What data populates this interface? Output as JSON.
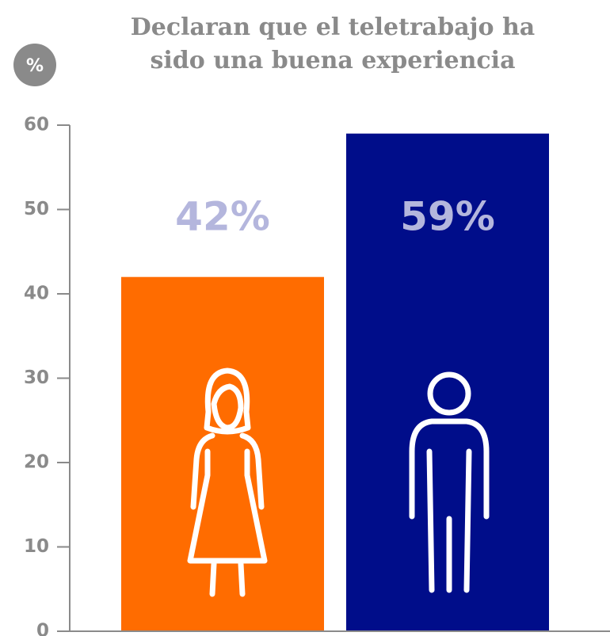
{
  "chart_data": {
    "type": "bar",
    "title_lines": [
      "Declaran que el teletrabajo ha",
      "sido una buena experiencia"
    ],
    "y_label": "%",
    "categories": [
      null,
      null
    ],
    "values": [
      42,
      59
    ],
    "value_labels": [
      "42%",
      "59%"
    ],
    "colors": [
      "#ff6c00",
      "#000d8a"
    ],
    "value_label_color": "#b4b6dd",
    "axis_color": "#8a8a8a",
    "ylim": [
      0,
      60
    ],
    "yticks": [
      0,
      10,
      20,
      30,
      40,
      50,
      60
    ],
    "grid": false
  }
}
